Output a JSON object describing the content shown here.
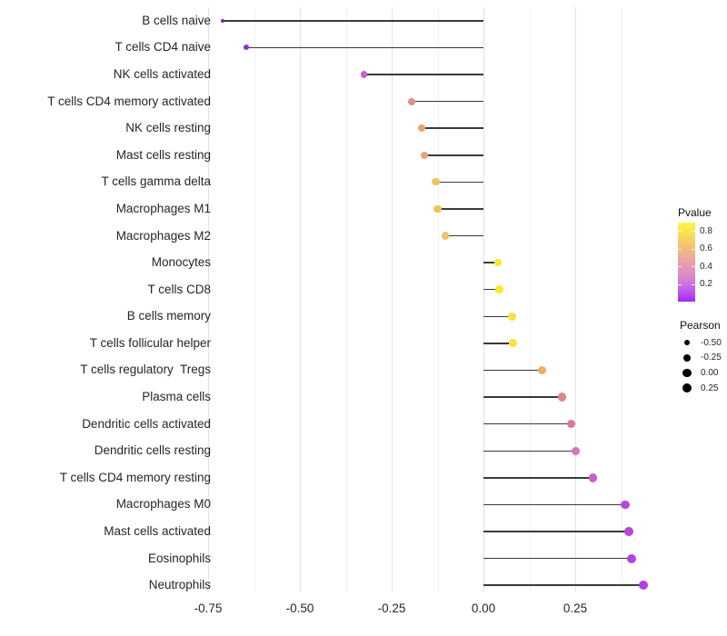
{
  "chart_data": {
    "type": "scatter",
    "variant": "lollipop",
    "orientation": "horizontal",
    "title": "",
    "xlabel": "",
    "ylabel": "",
    "grid": true,
    "background": "#ffffff",
    "x_axis": {
      "ticks": [
        "-0.75",
        "-0.50",
        "-0.25",
        "0.00",
        "0.25"
      ],
      "tick_values": [
        -0.75,
        -0.5,
        -0.25,
        0,
        0.25
      ],
      "minor_tick_values": [
        -0.625,
        -0.375,
        -0.125,
        0.125,
        0.375
      ],
      "min": -0.77,
      "max": 0.48
    },
    "points": [
      {
        "label": "B cells naive",
        "pearson": -0.71,
        "pvalue_approx": 0.001,
        "color": "#7E22AE",
        "dot_radius": 2.2
      },
      {
        "label": "T cells CD4 naive",
        "pearson": -0.647,
        "pvalue_approx": 0.02,
        "color": "#9130D2",
        "dot_radius": 3.0
      },
      {
        "label": "NK cells activated",
        "pearson": -0.325,
        "pvalue_approx": 0.13,
        "color": "#C75FD0",
        "dot_radius": 3.8
      },
      {
        "label": "T cells CD4 memory activated",
        "pearson": -0.196,
        "pvalue_approx": 0.38,
        "color": "#DE908F",
        "dot_radius": 4.0
      },
      {
        "label": "NK cells resting",
        "pearson": -0.168,
        "pvalue_approx": 0.47,
        "color": "#E8A474",
        "dot_radius": 4.0
      },
      {
        "label": "Mast cells resting",
        "pearson": -0.162,
        "pvalue_approx": 0.48,
        "color": "#E8A678",
        "dot_radius": 4.05
      },
      {
        "label": "T cells gamma delta",
        "pearson": -0.13,
        "pvalue_approx": 0.6,
        "color": "#F0C45E",
        "dot_radius": 4.1
      },
      {
        "label": "Macrophages M1",
        "pearson": -0.125,
        "pvalue_approx": 0.61,
        "color": "#F0C554",
        "dot_radius": 4.1
      },
      {
        "label": "Macrophages M2",
        "pearson": -0.104,
        "pvalue_approx": 0.63,
        "color": "#EEC36B",
        "dot_radius": 4.15
      },
      {
        "label": "Monocytes",
        "pearson": 0.04,
        "pvalue_approx": 0.86,
        "color": "#F8E930",
        "dot_radius": 4.3
      },
      {
        "label": "T cells CD8",
        "pearson": 0.043,
        "pvalue_approx": 0.86,
        "color": "#F8E930",
        "dot_radius": 4.3
      },
      {
        "label": "B cells memory",
        "pearson": 0.077,
        "pvalue_approx": 0.78,
        "color": "#F7E242",
        "dot_radius": 4.4
      },
      {
        "label": "T cells follicular helper",
        "pearson": 0.08,
        "pvalue_approx": 0.78,
        "color": "#F7E242",
        "dot_radius": 4.4
      },
      {
        "label": "T cells regulatory  Tregs",
        "pearson": 0.16,
        "pvalue_approx": 0.5,
        "color": "#EDAC6E",
        "dot_radius": 4.5
      },
      {
        "label": "Plasma cells",
        "pearson": 0.214,
        "pvalue_approx": 0.33,
        "color": "#DC868E",
        "dot_radius": 4.6
      },
      {
        "label": "Dendritic cells activated",
        "pearson": 0.238,
        "pvalue_approx": 0.28,
        "color": "#D5799E",
        "dot_radius": 4.65
      },
      {
        "label": "Dendritic cells resting",
        "pearson": 0.252,
        "pvalue_approx": 0.24,
        "color": "#D377B4",
        "dot_radius": 4.7
      },
      {
        "label": "T cells CD4 memory resting",
        "pearson": 0.298,
        "pvalue_approx": 0.17,
        "color": "#C75FC8",
        "dot_radius": 4.75
      },
      {
        "label": "Macrophages M0",
        "pearson": 0.387,
        "pvalue_approx": 0.07,
        "color": "#B847D8",
        "dot_radius": 4.85
      },
      {
        "label": "Mast cells activated",
        "pearson": 0.397,
        "pvalue_approx": 0.07,
        "color": "#B847D8",
        "dot_radius": 4.9
      },
      {
        "label": "Eosinophils",
        "pearson": 0.403,
        "pvalue_approx": 0.06,
        "color": "#B644DC",
        "dot_radius": 4.95
      },
      {
        "label": "Neutrophils",
        "pearson": 0.435,
        "pvalue_approx": 0.05,
        "color": "#B43EE2",
        "dot_radius": 5.0
      }
    ],
    "legend_pvalue": {
      "title": "Pvalue",
      "ticks": [
        "0.8",
        "0.6",
        "0.4",
        "0.2"
      ],
      "tick_values": [
        0.8,
        0.6,
        0.4,
        0.2
      ],
      "gradient_top_to_bottom": [
        "#FCF840",
        "#F7DA5E",
        "#F2BC7C",
        "#E8A0A8",
        "#DB8BC8",
        "#C564E8",
        "#A428FA"
      ]
    },
    "legend_pearson": {
      "title": "Pearson",
      "items": [
        {
          "label": "-0.50",
          "radius": 3.3
        },
        {
          "label": "-0.25",
          "radius": 4.0
        },
        {
          "label": "0.00",
          "radius": 4.7
        },
        {
          "label": "0.25",
          "radius": 5.0
        }
      ],
      "dot_color": "#000000"
    }
  }
}
